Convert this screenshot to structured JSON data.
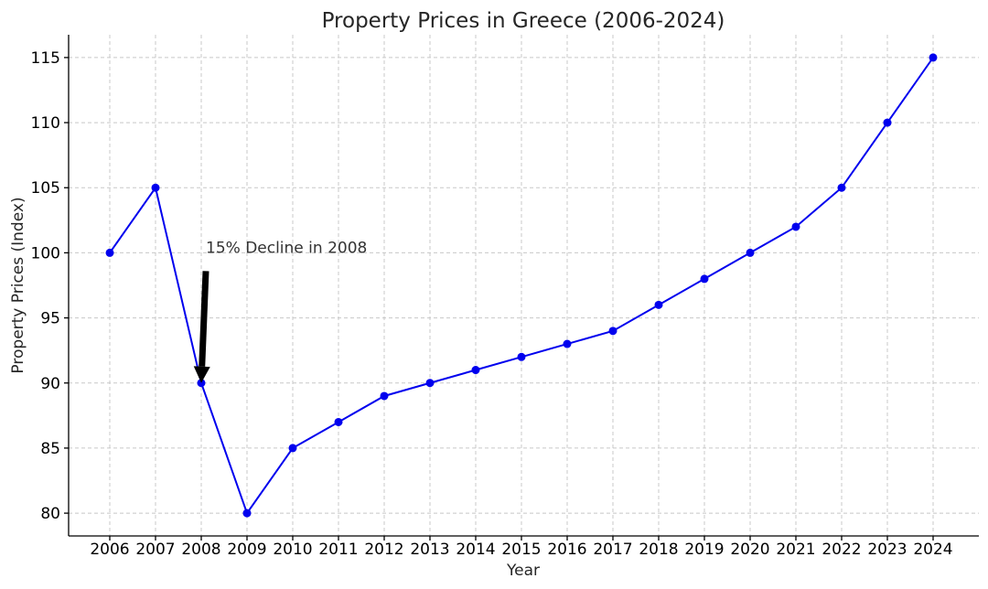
{
  "chart_data": {
    "type": "line",
    "title": "Property Prices in Greece (2006-2024)",
    "xlabel": "Year",
    "ylabel": "Property Prices (Index)",
    "x": [
      2006,
      2007,
      2008,
      2009,
      2010,
      2011,
      2012,
      2013,
      2014,
      2015,
      2016,
      2017,
      2018,
      2019,
      2020,
      2021,
      2022,
      2023,
      2024
    ],
    "series": [
      {
        "values": [
          100,
          105,
          90,
          80,
          85,
          87,
          89,
          90,
          91,
          92,
          93,
          94,
          96,
          98,
          100,
          102,
          105,
          110,
          115
        ],
        "color": "#0000ee",
        "marker": "circle"
      }
    ],
    "yticks": [
      80,
      85,
      90,
      95,
      100,
      105,
      110,
      115
    ],
    "ylim": [
      78.25,
      116.75
    ],
    "xlim": [
      2005.1,
      2025.0
    ],
    "grid": true,
    "annotation": {
      "text": "15% Decline in 2008",
      "x": 2008,
      "y": 90,
      "text_x": 2008.1,
      "text_y": 100
    }
  }
}
